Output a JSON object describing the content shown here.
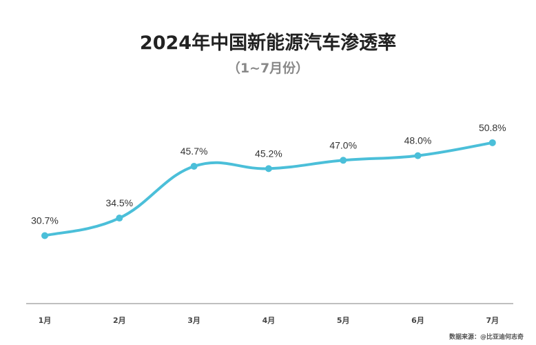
{
  "chart_data": {
    "type": "line",
    "title": "2024年中国新能源汽车渗透率",
    "subtitle": "（1~7月份）",
    "categories": [
      "1月",
      "2月",
      "3月",
      "4月",
      "5月",
      "6月",
      "7月"
    ],
    "series": [
      {
        "name": "渗透率",
        "values": [
          30.7,
          34.5,
          45.7,
          45.2,
          47.0,
          48.0,
          50.8
        ]
      }
    ],
    "data_labels": [
      "30.7%",
      "34.5%",
      "45.7%",
      "45.2%",
      "47.0%",
      "48.0%",
      "50.8%"
    ],
    "xlabel": "",
    "ylabel": "",
    "ylim": [
      16,
      56
    ],
    "grid": false,
    "line_color": "#4bbfd9",
    "source": "数据来源：@比亚迪何志奇"
  }
}
